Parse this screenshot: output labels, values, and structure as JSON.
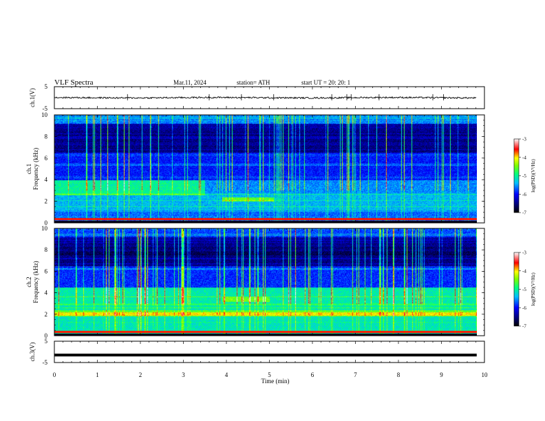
{
  "header": {
    "title": "VLF  Spectra",
    "date": "Mar.11, 2024",
    "station": "station= ATH",
    "start": "start  UT  =    20: 20: 1"
  },
  "chart_data": [
    {
      "type": "line",
      "panel": "ch1-waveform",
      "ylabel": "ch.1(V)",
      "y_ticks": [
        "5",
        "-5"
      ],
      "ylim": [
        -5,
        5
      ],
      "xlim": [
        0,
        10
      ],
      "trace_level": 0.0,
      "trace_noise": 0.35,
      "spikes_x_min": [
        1.7,
        3.6,
        4.35,
        5.1,
        6.45,
        6.8,
        6.9,
        7.55,
        8.8,
        9.05
      ]
    },
    {
      "type": "heatmap",
      "panel": "ch1-spectrogram",
      "ylabel": "ch.1\nFrequency  (kHz)",
      "y_ticks": [
        "10",
        "8",
        "6",
        "4",
        "2",
        "0"
      ],
      "ylim": [
        0,
        10
      ],
      "xlim": [
        0,
        10
      ],
      "colorbar": {
        "label": "log(PSD)(V²/Hz)",
        "ticks": [
          "-3",
          "-4",
          "-5",
          "-6",
          "-7"
        ],
        "range": [
          -7,
          -3
        ]
      }
    },
    {
      "type": "heatmap",
      "panel": "ch2-spectrogram",
      "ylabel": "ch.2\nFrequency  (kHz)",
      "y_ticks": [
        "10",
        "8",
        "6",
        "4",
        "2",
        "0"
      ],
      "ylim": [
        0,
        10
      ],
      "xlim": [
        0,
        10
      ],
      "colorbar": {
        "label": "log(PSD)(V²/Hz)",
        "ticks": [
          "-3",
          "-4",
          "-5",
          "-6",
          "-7"
        ],
        "range": [
          -7,
          -3
        ]
      }
    },
    {
      "type": "line",
      "panel": "ch3-waveform",
      "ylabel": "ch.3(V)",
      "y_ticks": [
        "5",
        "-5"
      ],
      "ylim": [
        -5,
        5
      ],
      "xlim": [
        0,
        10
      ],
      "trace_level": -1.5
    }
  ],
  "x_axis": {
    "label": "Time  (min)",
    "ticks": [
      "0",
      "1",
      "2",
      "3",
      "4",
      "5",
      "6",
      "7",
      "8",
      "9",
      "10"
    ],
    "data_end_min": 9.82
  },
  "colors": {
    "colormap": [
      "#000000",
      "#00007f",
      "#0000ff",
      "#00bfff",
      "#00ff7f",
      "#7fff00",
      "#ffff00",
      "#ff0000",
      "#ffffff"
    ]
  }
}
